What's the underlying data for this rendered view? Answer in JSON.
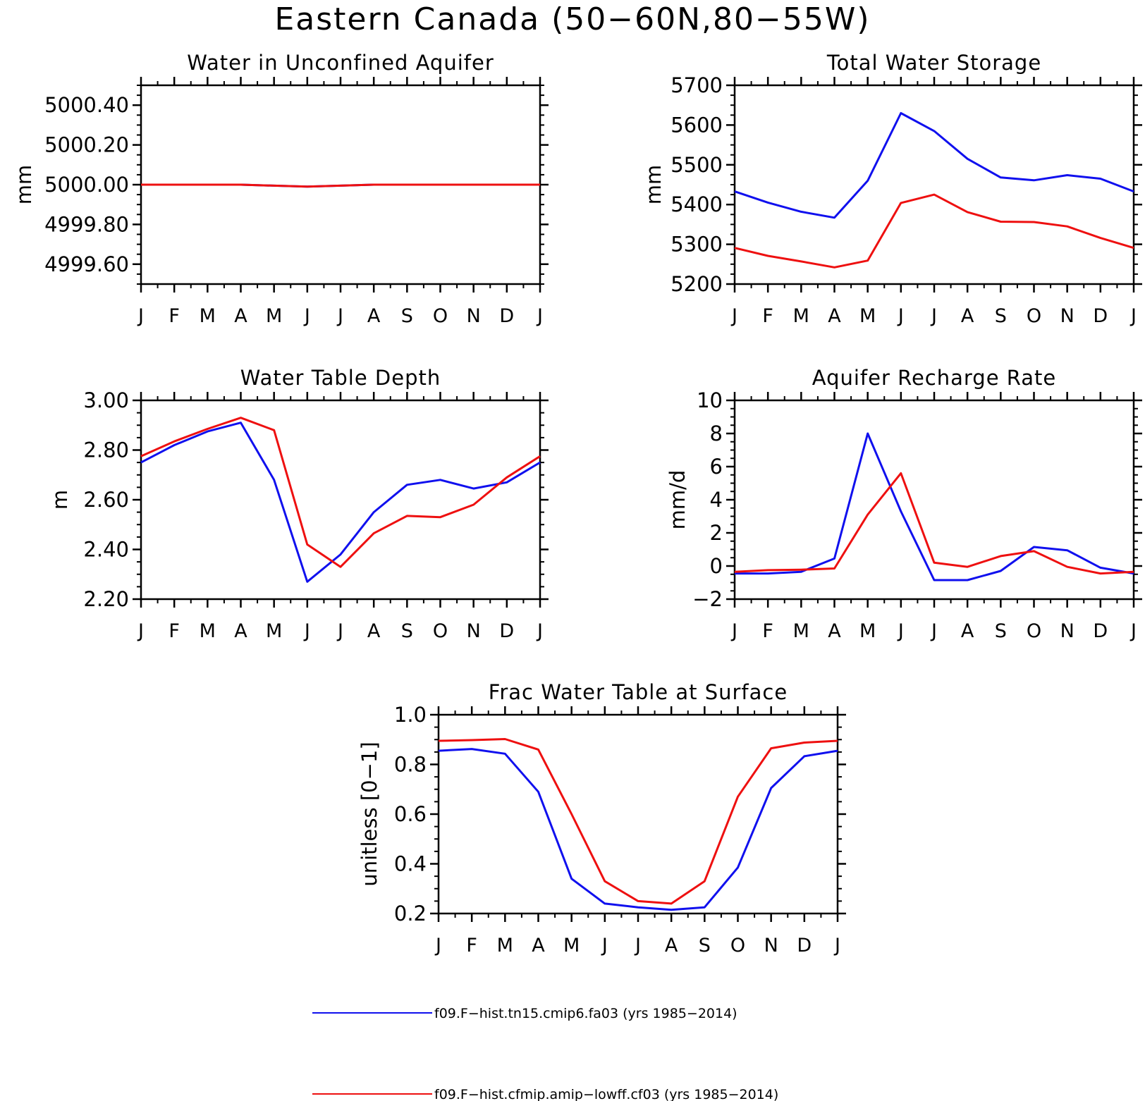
{
  "figure": {
    "title": "Eastern Canada (50−60N,80−55W)"
  },
  "legend": {
    "entries": [
      {
        "label": "f09.F−hist.tn15.cmip6.fa03 (yrs 1985−2014)",
        "color": "#1010ee"
      },
      {
        "label": "f09.F−hist.cfmip.amip−lowff.cf03 (yrs 1985−2014)",
        "color": "#ee1010"
      }
    ]
  },
  "chart_data": [
    {
      "type": "line",
      "title": "Water in Unconfined Aquifer",
      "ylabel": "mm",
      "xlabel": "",
      "x": [
        "J",
        "F",
        "M",
        "A",
        "M",
        "J",
        "J",
        "A",
        "S",
        "O",
        "N",
        "D",
        "J"
      ],
      "ylim": [
        4999.5,
        5000.5
      ],
      "yticks": [
        4999.6,
        4999.8,
        5000.0,
        5000.2,
        5000.4
      ],
      "ytick_labels": [
        "4999.60",
        "4999.80",
        "5000.00",
        "5000.20",
        "5000.40"
      ],
      "series": [
        {
          "color": "#1010ee",
          "values": [
            5000.0,
            5000.0,
            5000.0,
            5000.0,
            4999.995,
            4999.99,
            4999.995,
            5000.0,
            5000.0,
            5000.0,
            5000.0,
            5000.0,
            5000.0
          ]
        },
        {
          "color": "#ee1010",
          "values": [
            5000.0,
            5000.0,
            5000.0,
            5000.0,
            4999.995,
            4999.99,
            4999.995,
            5000.0,
            5000.0,
            5000.0,
            5000.0,
            5000.0,
            5000.0
          ]
        }
      ]
    },
    {
      "type": "line",
      "title": "Total Water Storage",
      "ylabel": "mm",
      "xlabel": "",
      "x": [
        "J",
        "F",
        "M",
        "A",
        "M",
        "J",
        "J",
        "A",
        "S",
        "O",
        "N",
        "D",
        "J"
      ],
      "ylim": [
        5200,
        5700
      ],
      "yticks": [
        5200,
        5300,
        5400,
        5500,
        5600,
        5700
      ],
      "ytick_labels": [
        "5200",
        "5300",
        "5400",
        "5500",
        "5600",
        "5700"
      ],
      "series": [
        {
          "color": "#1010ee",
          "values": [
            5433,
            5405,
            5382,
            5367,
            5460,
            5630,
            5585,
            5515,
            5468,
            5461,
            5474,
            5465,
            5433
          ]
        },
        {
          "color": "#ee1010",
          "values": [
            5291,
            5271,
            5257,
            5242,
            5259,
            5404,
            5425,
            5381,
            5357,
            5356,
            5345,
            5316,
            5291
          ]
        }
      ]
    },
    {
      "type": "line",
      "title": "Water Table Depth",
      "ylabel": "m",
      "xlabel": "",
      "x": [
        "J",
        "F",
        "M",
        "A",
        "M",
        "J",
        "J",
        "A",
        "S",
        "O",
        "N",
        "D",
        "J"
      ],
      "ylim": [
        2.2,
        3.0
      ],
      "yticks": [
        2.2,
        2.4,
        2.6,
        2.8,
        3.0
      ],
      "ytick_labels": [
        "2.20",
        "2.40",
        "2.60",
        "2.80",
        "3.00"
      ],
      "series": [
        {
          "color": "#1010ee",
          "values": [
            2.75,
            2.82,
            2.875,
            2.91,
            2.68,
            2.27,
            2.38,
            2.55,
            2.66,
            2.68,
            2.645,
            2.67,
            2.75
          ]
        },
        {
          "color": "#ee1010",
          "values": [
            2.775,
            2.835,
            2.885,
            2.93,
            2.88,
            2.42,
            2.33,
            2.465,
            2.535,
            2.53,
            2.58,
            2.69,
            2.775
          ]
        }
      ]
    },
    {
      "type": "line",
      "title": "Aquifer Recharge Rate",
      "ylabel": "mm/d",
      "xlabel": "",
      "x": [
        "J",
        "F",
        "M",
        "A",
        "M",
        "J",
        "J",
        "A",
        "S",
        "O",
        "N",
        "D",
        "J"
      ],
      "ylim": [
        -2,
        10
      ],
      "yticks": [
        -2,
        0,
        2,
        4,
        6,
        8,
        10
      ],
      "ytick_labels": [
        "−2",
        "0",
        "2",
        "4",
        "6",
        "8",
        "10"
      ],
      "series": [
        {
          "color": "#1010ee",
          "values": [
            -0.45,
            -0.45,
            -0.35,
            0.45,
            8.0,
            3.3,
            -0.85,
            -0.85,
            -0.3,
            1.15,
            0.95,
            -0.1,
            -0.45
          ]
        },
        {
          "color": "#ee1010",
          "values": [
            -0.35,
            -0.25,
            -0.22,
            -0.15,
            3.1,
            5.6,
            0.2,
            -0.05,
            0.6,
            0.9,
            -0.05,
            -0.45,
            -0.35
          ]
        }
      ]
    },
    {
      "type": "line",
      "title": "Frac Water Table at Surface",
      "ylabel": "unitless [0−1]",
      "xlabel": "",
      "x": [
        "J",
        "F",
        "M",
        "A",
        "M",
        "J",
        "J",
        "A",
        "S",
        "O",
        "N",
        "D",
        "J"
      ],
      "ylim": [
        0.2,
        1.0
      ],
      "yticks": [
        0.2,
        0.4,
        0.6,
        0.8,
        1.0
      ],
      "ytick_labels": [
        "0.2",
        "0.4",
        "0.6",
        "0.8",
        "1.0"
      ],
      "series": [
        {
          "color": "#1010ee",
          "values": [
            0.855,
            0.862,
            0.843,
            0.69,
            0.34,
            0.24,
            0.225,
            0.215,
            0.225,
            0.385,
            0.705,
            0.833,
            0.855
          ]
        },
        {
          "color": "#ee1010",
          "values": [
            0.895,
            0.898,
            0.902,
            0.86,
            0.6,
            0.33,
            0.25,
            0.24,
            0.33,
            0.67,
            0.865,
            0.888,
            0.895
          ]
        }
      ]
    }
  ]
}
